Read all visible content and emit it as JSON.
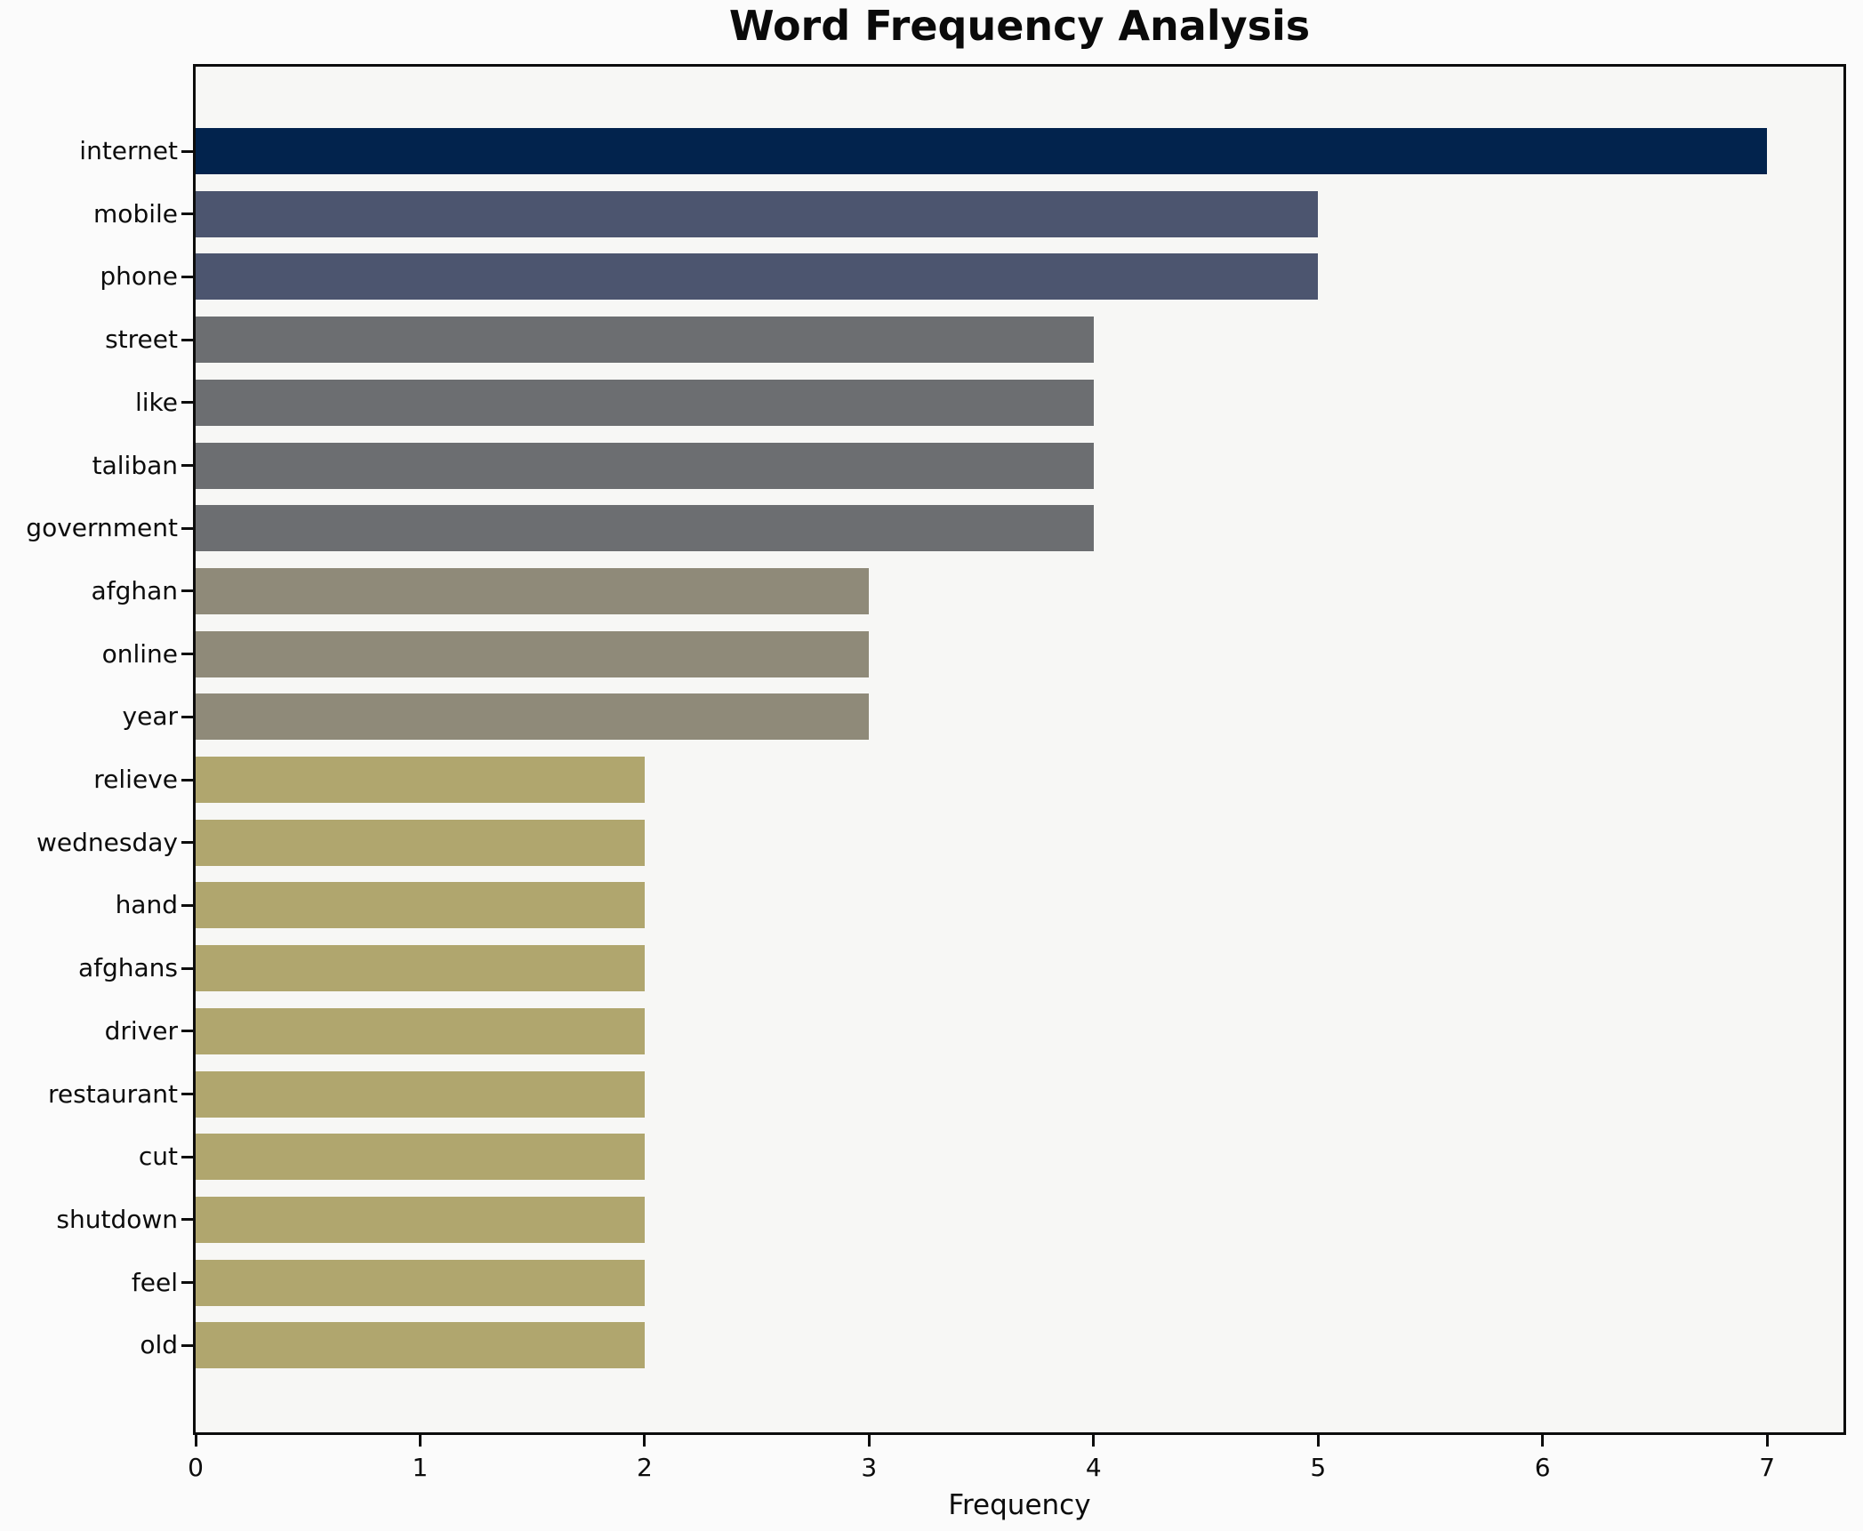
{
  "chart_data": {
    "type": "bar",
    "orientation": "horizontal",
    "title": "Word Frequency Analysis",
    "xlabel": "Frequency",
    "ylabel": "",
    "categories": [
      "internet",
      "mobile",
      "phone",
      "street",
      "like",
      "taliban",
      "government",
      "afghan",
      "online",
      "year",
      "relieve",
      "wednesday",
      "hand",
      "afghans",
      "driver",
      "restaurant",
      "cut",
      "shutdown",
      "feel",
      "old"
    ],
    "values": [
      7,
      5,
      5,
      4,
      4,
      4,
      4,
      3,
      3,
      3,
      2,
      2,
      2,
      2,
      2,
      2,
      2,
      2,
      2,
      2
    ],
    "bar_colors": [
      "#02234d",
      "#4c556f",
      "#4c556f",
      "#6c6e71",
      "#6c6e71",
      "#6c6e71",
      "#6c6e71",
      "#8f8a79",
      "#8f8a79",
      "#8f8a79",
      "#b0a66e",
      "#b0a66e",
      "#b0a66e",
      "#b0a66e",
      "#b0a66e",
      "#b0a66e",
      "#b0a66e",
      "#b0a66e",
      "#b0a66e",
      "#b0a66e"
    ],
    "xticks": [
      0,
      1,
      2,
      3,
      4,
      5,
      6,
      7
    ],
    "xlim": [
      0,
      7.34
    ],
    "grid": false,
    "legend": null,
    "colors": {
      "plot_background": "#f7f7f5",
      "figure_background": "#fbfbfb",
      "axis": "#0c0c0c",
      "bar_navy": "#02234d",
      "bar_slate": "#4c556f",
      "bar_gray": "#6c6e71",
      "bar_taupe": "#8f8a79",
      "bar_khaki": "#b0a66e"
    }
  }
}
